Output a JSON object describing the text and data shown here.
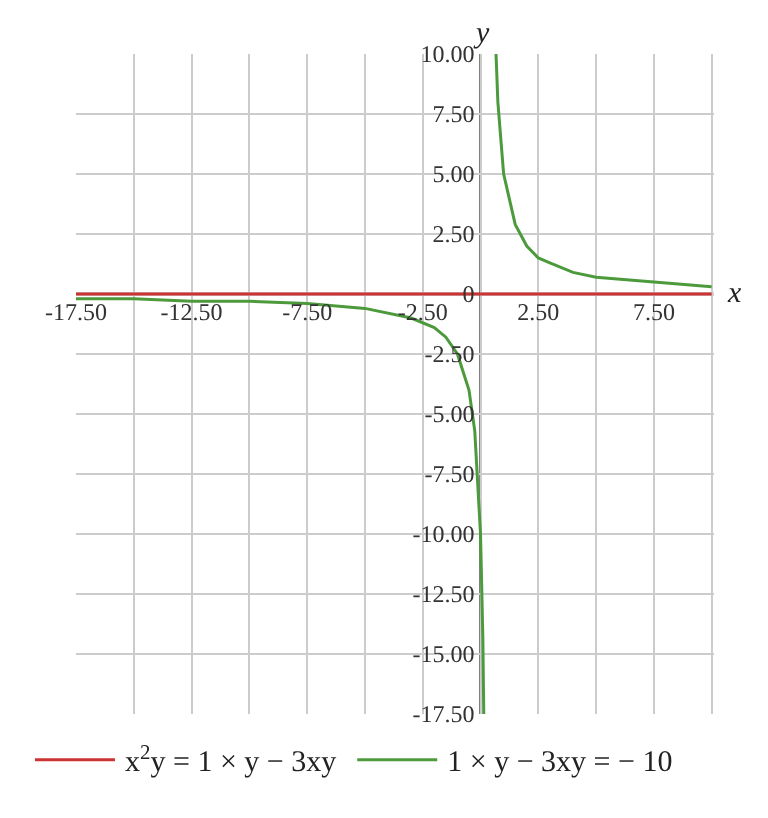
{
  "chart_data": {
    "type": "line",
    "xlabel": "x",
    "ylabel": "y",
    "xlim": [
      -17.5,
      10.1
    ],
    "ylim": [
      -17.5,
      10
    ],
    "xticks": [
      {
        "value": -17.5,
        "label": "-17.50"
      },
      {
        "value": -15,
        "label": null
      },
      {
        "value": -12.5,
        "label": "-12.50"
      },
      {
        "value": -10,
        "label": null
      },
      {
        "value": -7.5,
        "label": "-7.50"
      },
      {
        "value": -5,
        "label": null
      },
      {
        "value": -2.5,
        "label": "-2.50"
      },
      {
        "value": 0,
        "label": null
      },
      {
        "value": 2.5,
        "label": "2.50"
      },
      {
        "value": 5,
        "label": null
      },
      {
        "value": 7.5,
        "label": "7.50"
      },
      {
        "value": 10,
        "label": null
      }
    ],
    "yticks": [
      {
        "value": -17.5,
        "label": "-17.50"
      },
      {
        "value": -15,
        "label": "-15.00"
      },
      {
        "value": -12.5,
        "label": "-12.50"
      },
      {
        "value": -10,
        "label": "-10.00"
      },
      {
        "value": -7.5,
        "label": "-7.50"
      },
      {
        "value": -5,
        "label": "-5.00"
      },
      {
        "value": -2.5,
        "label": "-2.50"
      },
      0,
      {
        "value": 2.5,
        "label": "2.50"
      },
      {
        "value": 5,
        "label": "5.00"
      },
      {
        "value": 7.5,
        "label": "7.50"
      },
      {
        "value": 10,
        "label": "10.00"
      }
    ],
    "grid": true,
    "legend": "bottom",
    "marker": "none",
    "line_style": "solid",
    "series": [
      {
        "name": "x$^{2}$y = 1 × y − 3xy",
        "color": "#cc3333",
        "x": [
          -17.5,
          10
        ],
        "values": [
          0,
          0
        ]
      },
      {
        "name": "1 × y − 3xy = − 10",
        "color": "#4c9a3c",
        "x": [
          -17.5,
          -15,
          -12.5,
          -10,
          -7.5,
          -5,
          -3,
          -2,
          -1.5,
          -1,
          -0.5,
          -0.25,
          0,
          0.1,
          0.14,
          0.4,
          0.67,
          0.75,
          1,
          1.5,
          2,
          2.5,
          3,
          4,
          5,
          7.5,
          10
        ],
        "values": [
          -0.2,
          -0.2,
          -0.3,
          -0.3,
          -0.4,
          -0.6,
          -1,
          -1.4,
          -1.8,
          -2.5,
          -4,
          -5.7,
          -10,
          -14.3,
          -17.5,
          null,
          10,
          8,
          5,
          2.9,
          2,
          1.5,
          1.3,
          0.9,
          0.7,
          0.5,
          0.3
        ]
      }
    ]
  }
}
